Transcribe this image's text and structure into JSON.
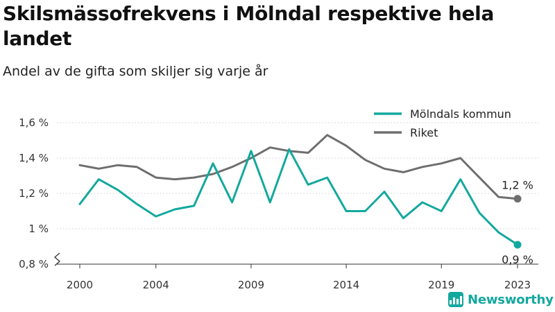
{
  "chart_data": {
    "type": "line",
    "title": "Skilsmässofrekvens i Mölndal respektive hela landet",
    "subtitle": "Andel av de gifta som skiljer sig varje år",
    "x": [
      2000,
      2001,
      2002,
      2003,
      2004,
      2005,
      2006,
      2007,
      2008,
      2009,
      2010,
      2011,
      2012,
      2013,
      2014,
      2015,
      2016,
      2017,
      2018,
      2019,
      2020,
      2021,
      2022,
      2023
    ],
    "xticks": [
      2000,
      2004,
      2009,
      2014,
      2019,
      2023
    ],
    "xtick_labels": [
      "2000",
      "2004",
      "2009",
      "2014",
      "2019",
      "2023"
    ],
    "ylim": [
      0.8,
      1.6
    ],
    "yticks": [
      0.8,
      1.0,
      1.2,
      1.4,
      1.6
    ],
    "ytick_labels": [
      "0,8 %",
      "1 %",
      "1,2 %",
      "1,4 %",
      "1,6 %"
    ],
    "axis_break": true,
    "grid": "horizontal dotted",
    "legend_position": "top-right",
    "series": [
      {
        "name": "Mölndals kommun",
        "color": "#13a89e",
        "values": [
          1.14,
          1.28,
          1.22,
          1.14,
          1.07,
          1.11,
          1.13,
          1.37,
          1.15,
          1.44,
          1.15,
          1.45,
          1.25,
          1.29,
          1.1,
          1.1,
          1.21,
          1.06,
          1.15,
          1.1,
          1.28,
          1.09,
          0.98,
          0.91
        ],
        "end_label": "0,9 %"
      },
      {
        "name": "Riket",
        "color": "#6e6e6e",
        "values": [
          1.36,
          1.34,
          1.36,
          1.35,
          1.29,
          1.28,
          1.29,
          1.31,
          1.35,
          1.4,
          1.46,
          1.44,
          1.43,
          1.53,
          1.47,
          1.39,
          1.34,
          1.32,
          1.35,
          1.37,
          1.4,
          1.29,
          1.18,
          1.17
        ],
        "end_label": "1,2 %"
      }
    ]
  },
  "brand": {
    "name": "Newsworthy",
    "color": "#13a89e",
    "icon": "bar-chart-logo-icon"
  }
}
